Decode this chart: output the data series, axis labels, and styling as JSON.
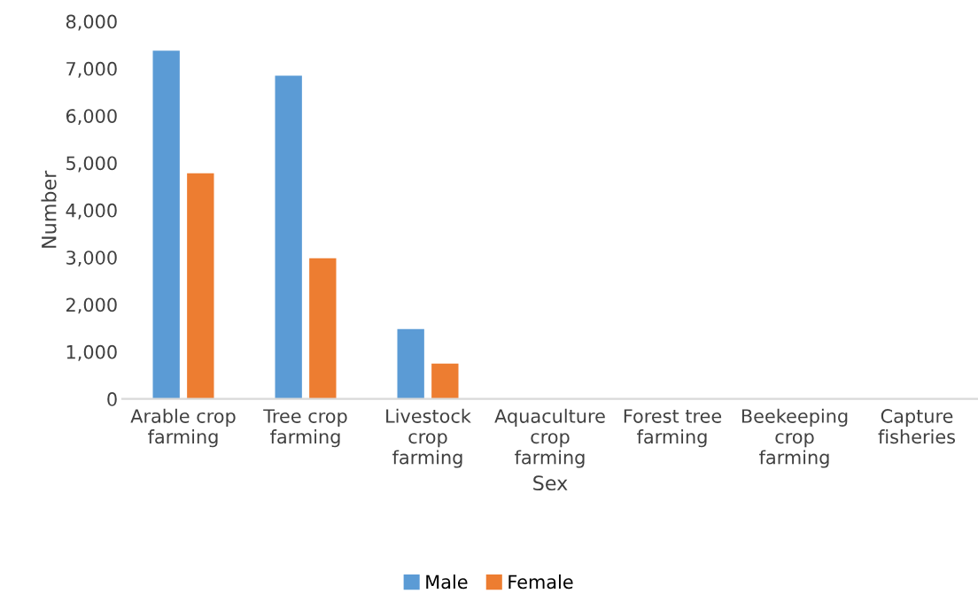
{
  "chart_data": {
    "type": "bar",
    "xlabel": "Sex",
    "ylabel": "Number",
    "categories": [
      "Arable crop farming",
      "Tree crop farming",
      "Livestock crop farming",
      "Aquaculture crop farming",
      "Forest tree farming",
      "Beekeeping crop farming",
      "Capture fisheries"
    ],
    "series": [
      {
        "name": "Male",
        "color": "#5b9bd5",
        "values": [
          7380,
          6850,
          1480,
          null,
          null,
          null,
          null
        ]
      },
      {
        "name": "Female",
        "color": "#ed7d31",
        "values": [
          4780,
          2980,
          750,
          null,
          null,
          null,
          null
        ]
      }
    ],
    "ylim": [
      0,
      8000
    ],
    "yticks": [
      {
        "value": 0,
        "label": "0"
      },
      {
        "value": 1000,
        "label": "1,000"
      },
      {
        "value": 2000,
        "label": "2,000"
      },
      {
        "value": 3000,
        "label": "3,000"
      },
      {
        "value": 4000,
        "label": "4,000"
      },
      {
        "value": 5000,
        "label": "5,000"
      },
      {
        "value": 6000,
        "label": "6,000"
      },
      {
        "value": 7000,
        "label": "7,000"
      },
      {
        "value": 8000,
        "label": "8,000"
      }
    ],
    "grid": false,
    "legend": "bottom"
  }
}
